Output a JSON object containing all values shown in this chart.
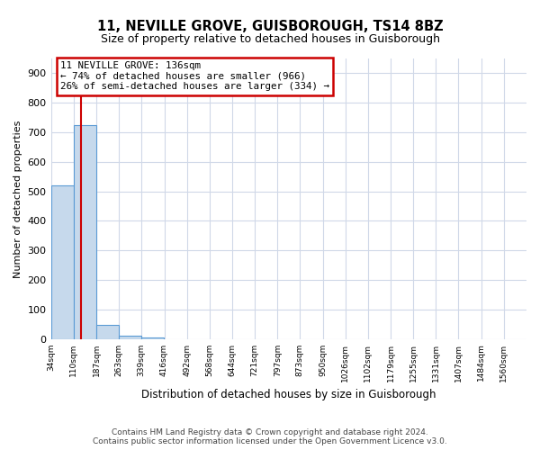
{
  "title1": "11, NEVILLE GROVE, GUISBOROUGH, TS14 8BZ",
  "title2": "Size of property relative to detached houses in Guisborough",
  "xlabel": "Distribution of detached houses by size in Guisborough",
  "ylabel": "Number of detached properties",
  "bin_labels": [
    "34sqm",
    "110sqm",
    "187sqm",
    "263sqm",
    "339sqm",
    "416sqm",
    "492sqm",
    "568sqm",
    "644sqm",
    "721sqm",
    "797sqm",
    "873sqm",
    "950sqm",
    "1026sqm",
    "1102sqm",
    "1179sqm",
    "1255sqm",
    "1331sqm",
    "1407sqm",
    "1484sqm",
    "1560sqm"
  ],
  "bin_edges": [
    34,
    110,
    187,
    263,
    339,
    416,
    492,
    568,
    644,
    721,
    797,
    873,
    950,
    1026,
    1102,
    1179,
    1255,
    1331,
    1407,
    1484,
    1560
  ],
  "bar_heights": [
    520,
    725,
    47,
    10,
    5,
    0,
    0,
    0,
    0,
    0,
    0,
    0,
    0,
    0,
    0,
    0,
    0,
    0,
    0,
    0
  ],
  "bar_color": "#c6d9ec",
  "bar_edge_color": "#5b9bd5",
  "property_line_x": 136,
  "property_line_color": "#cc0000",
  "annotation_line1": "11 NEVILLE GROVE: 136sqm",
  "annotation_line2": "← 74% of detached houses are smaller (966)",
  "annotation_line3": "26% of semi-detached houses are larger (334) →",
  "annotation_box_color": "#cc0000",
  "ylim": [
    0,
    950
  ],
  "yticks": [
    0,
    100,
    200,
    300,
    400,
    500,
    600,
    700,
    800,
    900
  ],
  "footer1": "Contains HM Land Registry data © Crown copyright and database right 2024.",
  "footer2": "Contains public sector information licensed under the Open Government Licence v3.0.",
  "bg_color": "#ffffff",
  "grid_color": "#d0d8e8"
}
